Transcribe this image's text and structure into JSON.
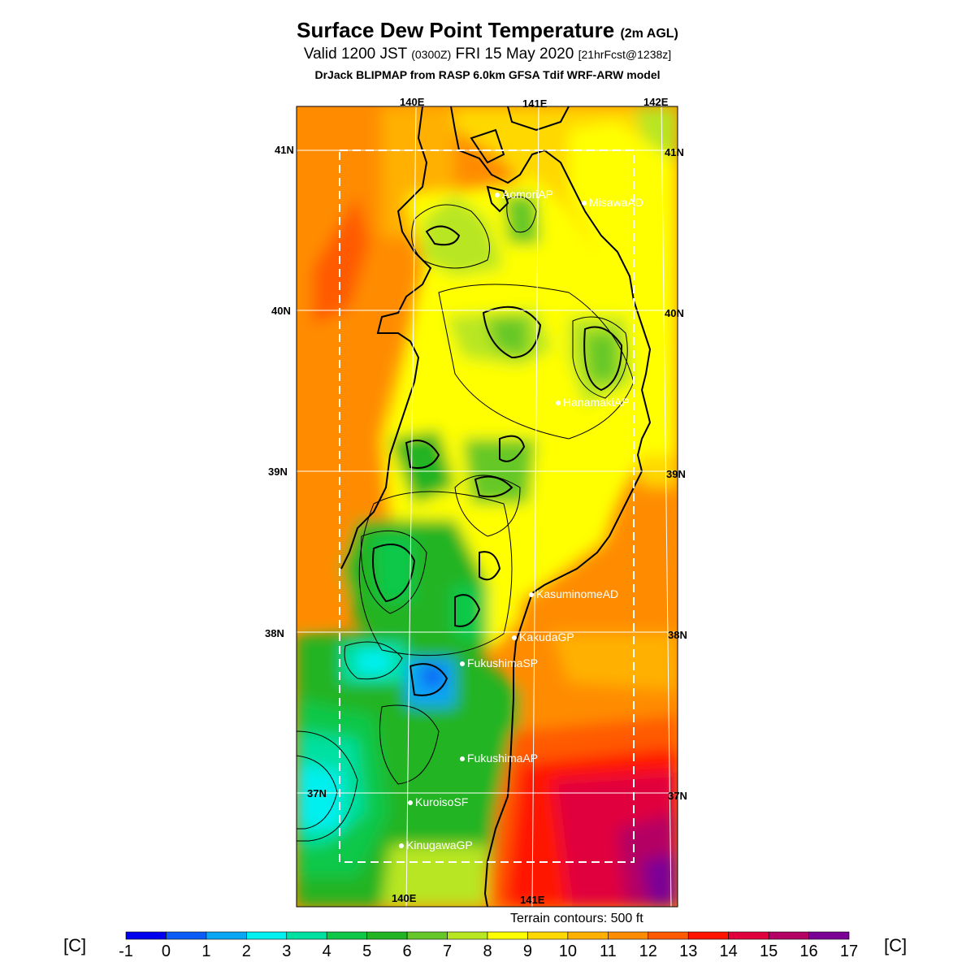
{
  "header": {
    "title_main": "Surface Dew Point Temperature",
    "title_small": "(2m AGL)",
    "valid_main": "Valid 1200 JST",
    "valid_zone": "(0300Z)",
    "valid_date": "FRI 15 May 2020",
    "valid_fcst": "[21hrFcst@1238z]",
    "model": "DrJack BLIPMAP from RASP 6.0km GFSA Tdif WRF-ARW model"
  },
  "axes": {
    "lon_top": [
      "140E",
      "141E",
      "142E"
    ],
    "lon_bottom": [
      "140E",
      "141E"
    ],
    "lat_left": [
      "41N",
      "40N",
      "39N",
      "38N",
      "37N"
    ],
    "lat_right": [
      "41N",
      "40N",
      "39N",
      "38N",
      "37N"
    ]
  },
  "stations": [
    {
      "name": "AomoriAP"
    },
    {
      "name": "MisawaAD"
    },
    {
      "name": "HanamakiAP"
    },
    {
      "name": "KasuminomeAD"
    },
    {
      "name": "KakudaGP"
    },
    {
      "name": "FukushimaSP"
    },
    {
      "name": "FukushimaAP"
    },
    {
      "name": "KuroisoSF"
    },
    {
      "name": "KinugawaGP"
    }
  ],
  "terrain_note": "Terrain contours: 500 ft",
  "colorbar": {
    "unit": "[C]",
    "ticks": [
      "-1",
      "0",
      "1",
      "2",
      "3",
      "4",
      "5",
      "6",
      "7",
      "8",
      "9",
      "10",
      "11",
      "12",
      "13",
      "14",
      "15",
      "16",
      "17"
    ],
    "colors": [
      "#0000ee",
      "#0b5cf6",
      "#0aa6f6",
      "#00f0f0",
      "#00e0a0",
      "#10c848",
      "#22b422",
      "#66c828",
      "#b8e620",
      "#ffff00",
      "#ffd800",
      "#ffb000",
      "#ff8c00",
      "#ff5a00",
      "#ff1400",
      "#e0003c",
      "#b40064",
      "#7a0096"
    ]
  },
  "legend": {
    "water_color": "#ff8c00",
    "boundary_color": "#ffffff",
    "coast_color": "#000000"
  }
}
